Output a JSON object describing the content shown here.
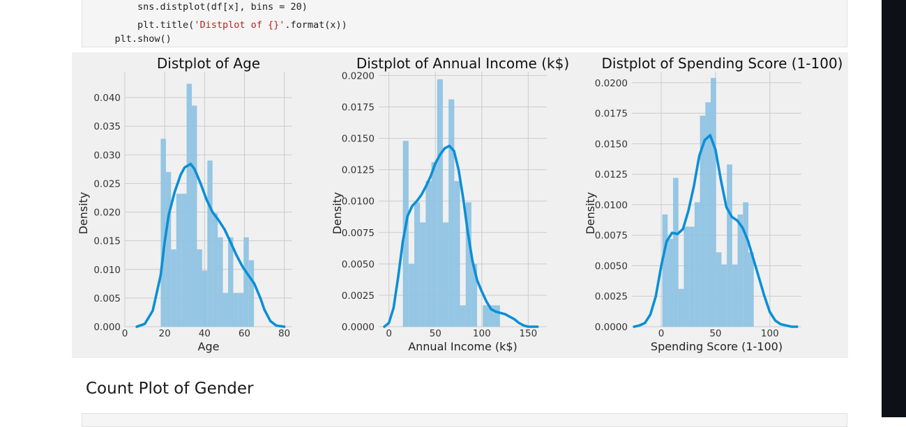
{
  "code": {
    "lines": [
      {
        "indent": "    ",
        "parts": [
          {
            "t": "sns.distplot(df[x], bins = 20)",
            "c": "fn"
          }
        ]
      },
      {
        "indent": "    ",
        "parts": [
          {
            "t": "plt.title(",
            "c": "fn"
          },
          {
            "t": "'Distplot of {}'",
            "c": "str"
          },
          {
            "t": ".format(x))",
            "c": "fn"
          }
        ]
      },
      {
        "indent": "",
        "parts": [
          {
            "t": "plt.show()",
            "c": "fn"
          }
        ]
      }
    ]
  },
  "section": {
    "title": "Count Plot of Gender"
  },
  "colors": {
    "hist": "#8fc3e3",
    "kde": "#0a8fd6",
    "grid": "#cbcbcb",
    "background": "#f0f0f0"
  },
  "chart_data": [
    {
      "type": "bar",
      "title": "Distplot of Age",
      "xlabel": "Age",
      "ylabel": "Density",
      "xlim": [
        0,
        84
      ],
      "ylim": [
        0,
        0.0445
      ],
      "xticks": [
        0,
        20,
        40,
        60,
        80
      ],
      "yticks": [
        0.0,
        0.005,
        0.01,
        0.015,
        0.02,
        0.025,
        0.03,
        0.035,
        0.04
      ],
      "ytick_labels": [
        "0.000",
        "0.005",
        "0.010",
        "0.015",
        "0.020",
        "0.025",
        "0.030",
        "0.035",
        "0.040"
      ],
      "bins": {
        "start": 18,
        "width": 2.6,
        "values": [
          0.0328,
          0.027,
          0.0135,
          0.0232,
          0.0232,
          0.0424,
          0.0386,
          0.0135,
          0.0098,
          0.029,
          0.0198,
          0.0156,
          0.0059,
          0.0156,
          0.0059,
          0.0059,
          0.0156,
          0.0116
        ]
      },
      "kde": {
        "x": [
          6,
          10,
          14,
          18,
          20,
          22,
          25,
          28,
          30,
          33,
          35,
          38,
          41,
          44,
          47,
          50,
          53,
          56,
          59,
          62,
          65,
          68,
          70,
          73,
          76,
          80
        ],
        "y": [
          0.0,
          0.0005,
          0.0028,
          0.009,
          0.0148,
          0.0195,
          0.0235,
          0.0265,
          0.0278,
          0.0284,
          0.0275,
          0.025,
          0.0222,
          0.02,
          0.0186,
          0.017,
          0.0148,
          0.0125,
          0.0105,
          0.009,
          0.0075,
          0.005,
          0.003,
          0.001,
          0.0002,
          0.0
        ]
      }
    },
    {
      "type": "bar",
      "title": "Distplot of Annual Income (k$)",
      "xlabel": "Annual Income (k$)",
      "ylabel": "Density",
      "xlim": [
        -11,
        170
      ],
      "ylim": [
        0,
        0.0203
      ],
      "xticks": [
        0,
        50,
        100,
        150
      ],
      "yticks": [
        0.0,
        0.0025,
        0.005,
        0.0075,
        0.01,
        0.0125,
        0.015,
        0.0175,
        0.02
      ],
      "ytick_labels": [
        "0.0000",
        "0.0025",
        "0.0050",
        "0.0075",
        "0.0100",
        "0.0125",
        "0.0150",
        "0.0175",
        "0.0200"
      ],
      "bins": {
        "start": 15,
        "width": 6.15,
        "values": [
          0.0148,
          0.005,
          0.0099,
          0.0083,
          0.0116,
          0.0131,
          0.0197,
          0.0083,
          0.0181,
          0.0116,
          0.0017,
          0.0099,
          0.005,
          0.0,
          0.0017,
          0.0017,
          0.0017,
          0.0,
          0.0,
          0.0
        ]
      },
      "kde": {
        "x": [
          -5,
          0,
          5,
          10,
          15,
          20,
          25,
          30,
          35,
          40,
          45,
          50,
          55,
          60,
          65,
          70,
          75,
          80,
          85,
          90,
          95,
          100,
          105,
          110,
          115,
          120,
          125,
          130,
          135,
          140,
          145,
          150,
          155,
          160
        ],
        "y": [
          0.0,
          0.0003,
          0.0015,
          0.004,
          0.0068,
          0.0088,
          0.0096,
          0.01,
          0.0105,
          0.0112,
          0.012,
          0.013,
          0.0137,
          0.0142,
          0.0144,
          0.014,
          0.0125,
          0.0102,
          0.0075,
          0.0052,
          0.0037,
          0.0028,
          0.002,
          0.0014,
          0.0012,
          0.0011,
          0.001,
          0.0008,
          0.0006,
          0.0003,
          0.0001,
          0.0,
          0.0,
          0.0
        ]
      }
    },
    {
      "type": "bar",
      "title": "Distplot of Spending Score (1-100)",
      "xlabel": "Spending Score (1-100)",
      "ylabel": "Density",
      "xlim": [
        -27,
        129
      ],
      "ylim": [
        0,
        0.0209
      ],
      "xticks": [
        0,
        50,
        100
      ],
      "yticks": [
        0.0,
        0.0025,
        0.005,
        0.0075,
        0.01,
        0.0125,
        0.015,
        0.0175,
        0.02
      ],
      "ytick_labels": [
        "0.0000",
        "0.0025",
        "0.0050",
        "0.0075",
        "0.0100",
        "0.0125",
        "0.0150",
        "0.0175",
        "0.0200"
      ],
      "bins": {
        "start": 1,
        "width": 4.95,
        "values": [
          0.0092,
          0.0072,
          0.0122,
          0.0031,
          0.0082,
          0.0082,
          0.0102,
          0.0173,
          0.0184,
          0.0204,
          0.0061,
          0.0051,
          0.0133,
          0.0051,
          0.0092,
          0.0102,
          0.0061,
          0.0,
          0.0,
          0.0
        ]
      },
      "kde": {
        "x": [
          -25,
          -20,
          -15,
          -10,
          -5,
          0,
          5,
          10,
          15,
          20,
          25,
          30,
          35,
          40,
          45,
          50,
          55,
          60,
          65,
          70,
          75,
          80,
          85,
          90,
          95,
          100,
          105,
          110,
          115,
          120,
          125
        ],
        "y": [
          0.0,
          0.0001,
          0.0003,
          0.001,
          0.0025,
          0.005,
          0.007,
          0.0077,
          0.0076,
          0.008,
          0.0095,
          0.0115,
          0.014,
          0.0153,
          0.0157,
          0.0145,
          0.012,
          0.0098,
          0.009,
          0.0087,
          0.0081,
          0.007,
          0.0055,
          0.004,
          0.0025,
          0.0012,
          0.0005,
          0.0002,
          0.0001,
          0.0,
          0.0
        ]
      }
    }
  ]
}
